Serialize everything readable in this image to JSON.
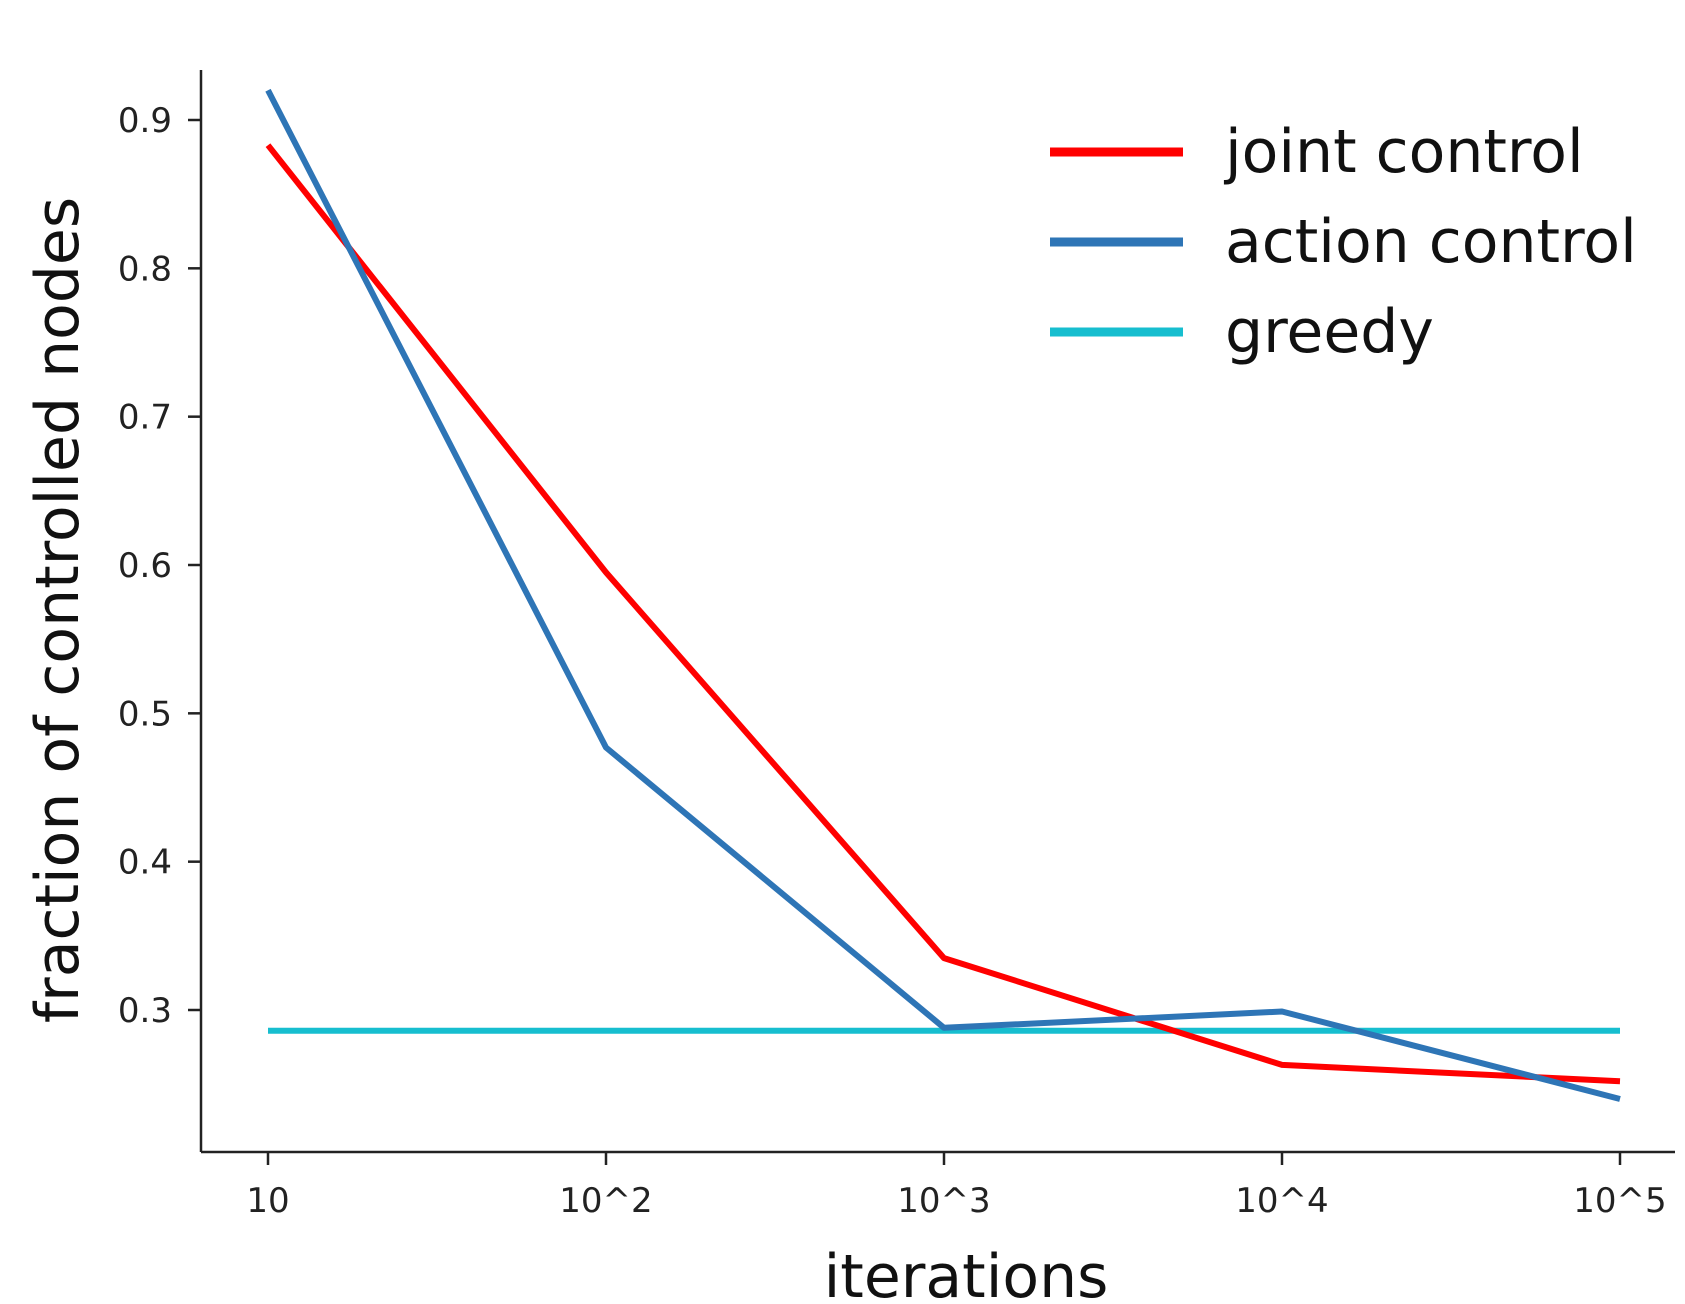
{
  "chart_data": {
    "type": "line",
    "x": [
      "10",
      "10^2",
      "10^3",
      "10^4",
      "10^5"
    ],
    "series": [
      {
        "name": "joint control",
        "color": "#ff0000",
        "values": [
          0.883,
          0.595,
          0.335,
          0.263,
          0.252
        ]
      },
      {
        "name": "action control",
        "color": "#2e75b6",
        "values": [
          0.92,
          0.477,
          0.288,
          0.299,
          0.24
        ]
      },
      {
        "name": "greedy",
        "color": "#17becf",
        "values": [
          0.286,
          0.286,
          0.286,
          0.286,
          0.286
        ]
      }
    ],
    "xlabel": "iterations",
    "ylabel": "fraction of controlled nodes",
    "yticks": [
      0.3,
      0.4,
      0.5,
      0.6,
      0.7,
      0.8,
      0.9
    ],
    "ytick_labels": [
      "0.3",
      "0.4",
      "0.5",
      "0.6",
      "0.7",
      "0.8",
      "0.9"
    ],
    "ylim": [
      0.2,
      0.934
    ],
    "grid": false,
    "legend_position": "top-right"
  }
}
